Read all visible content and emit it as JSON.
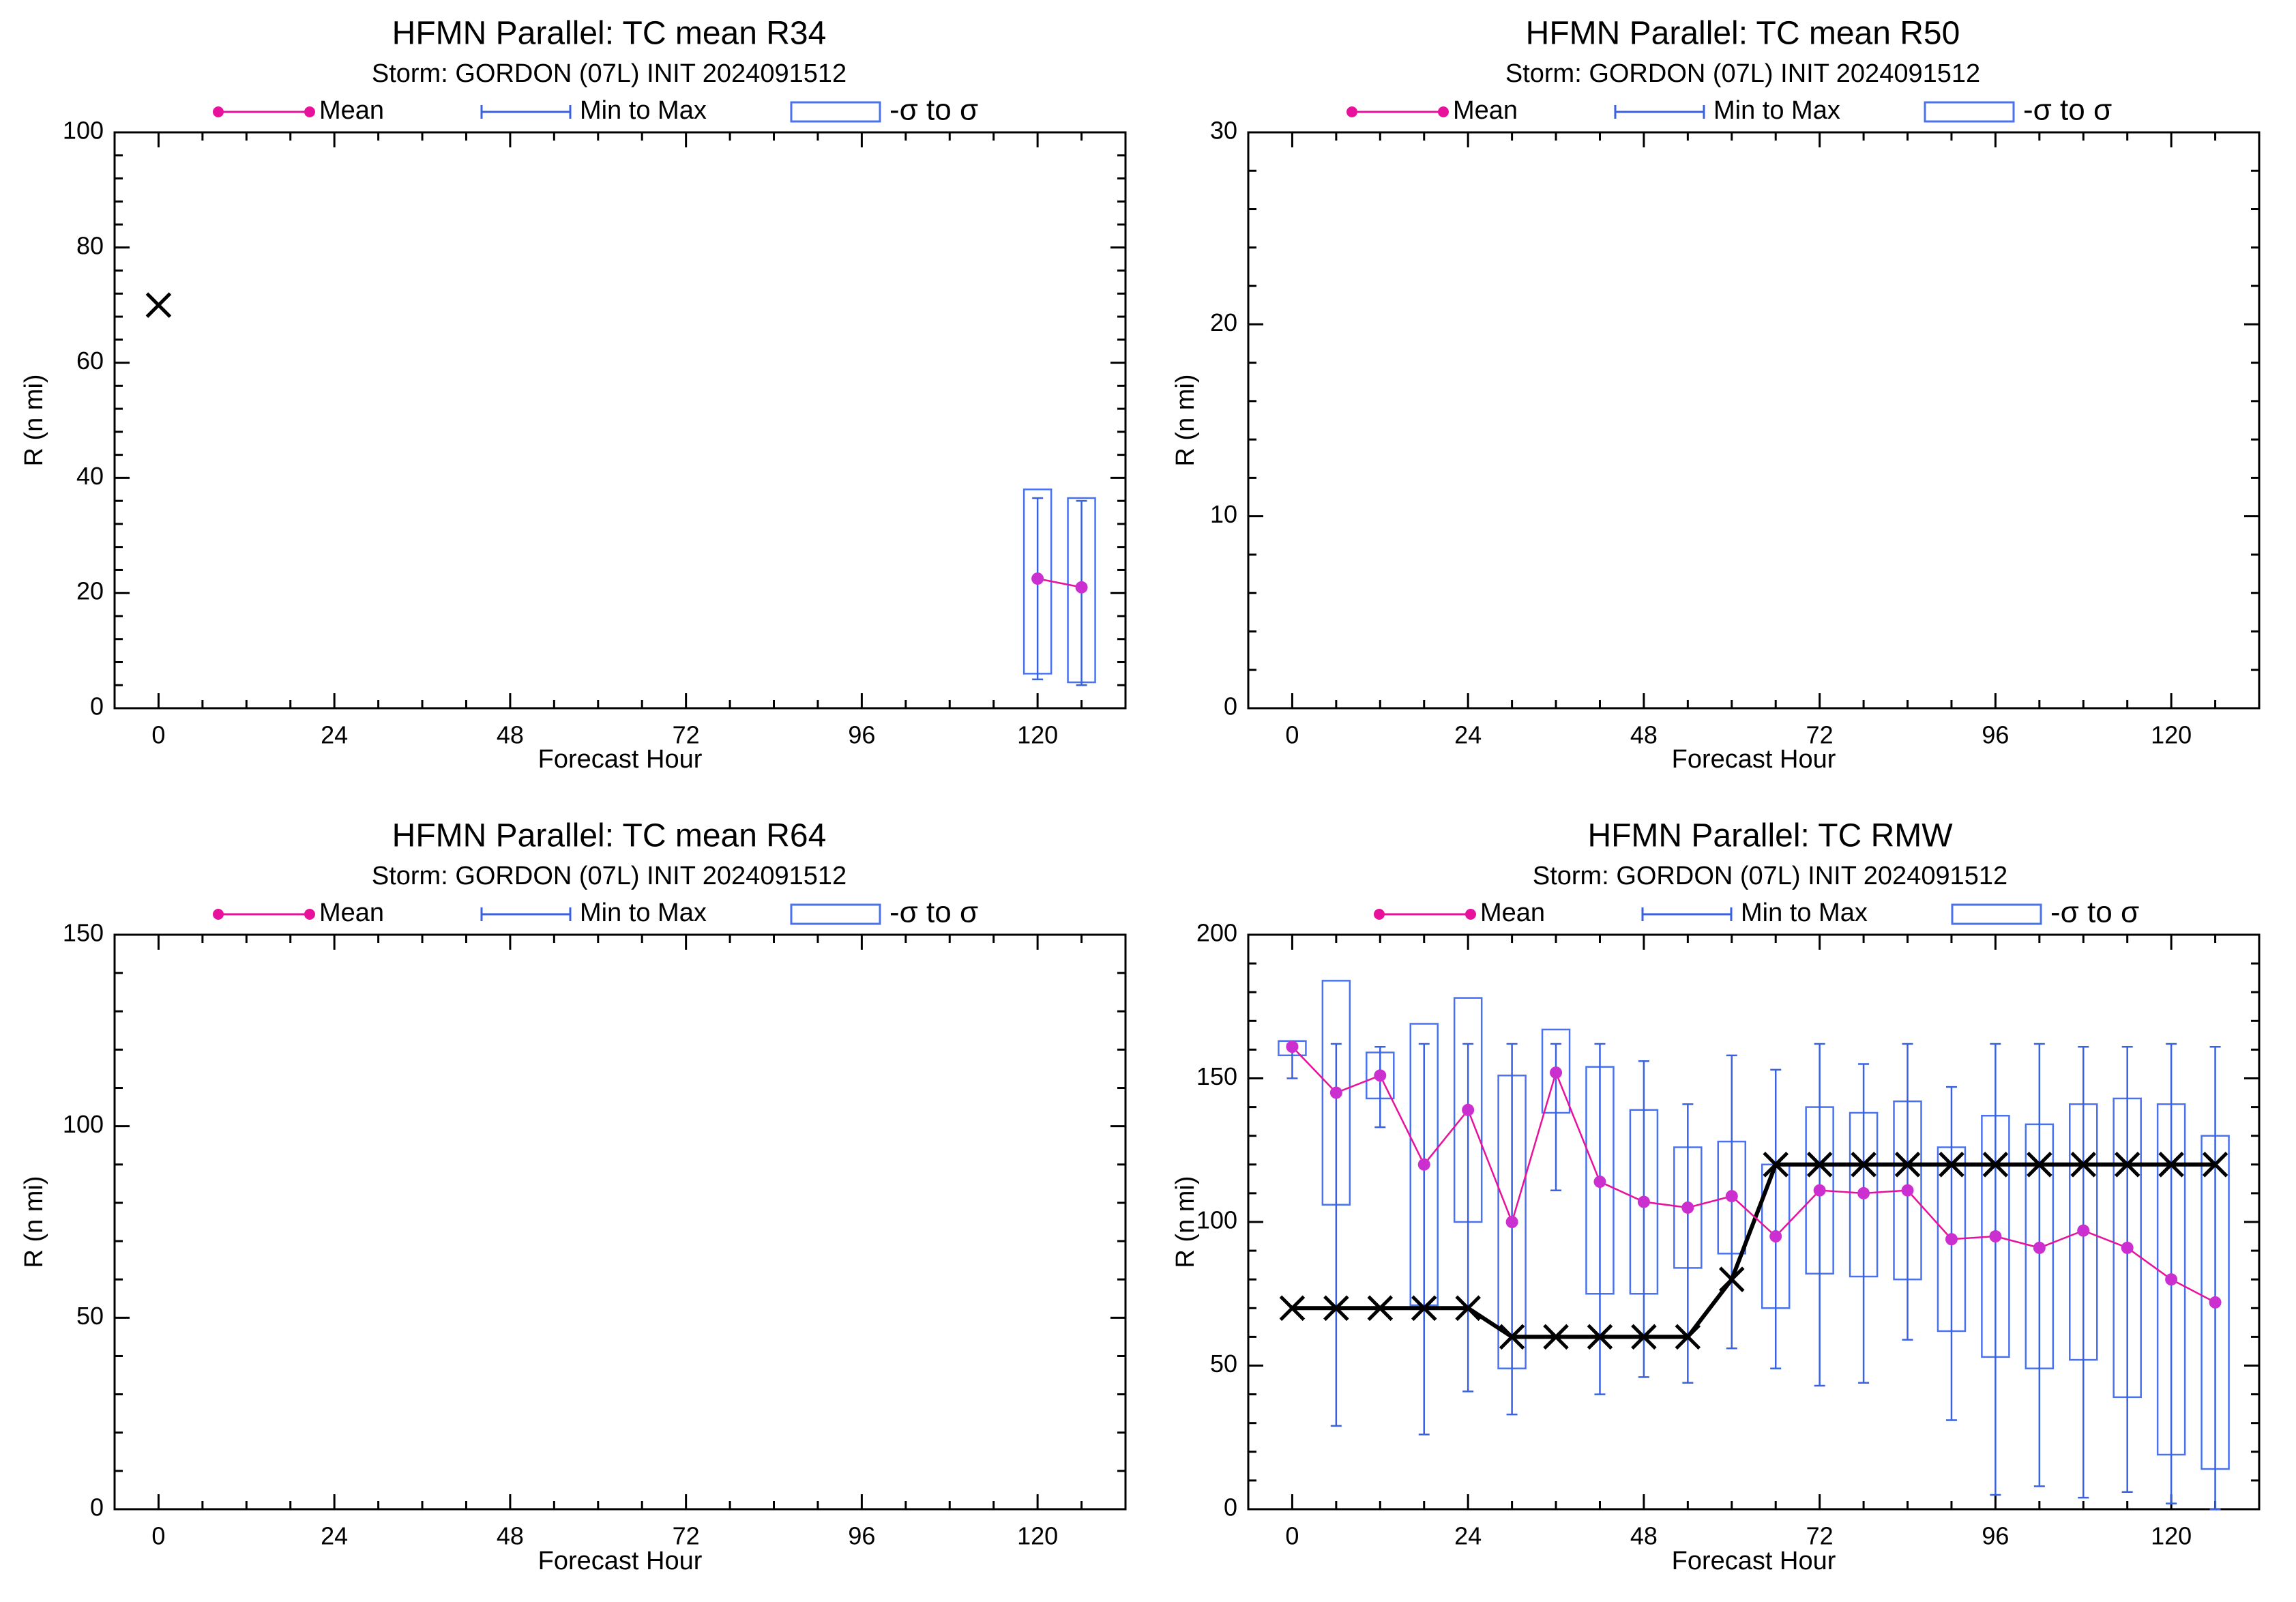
{
  "colors": {
    "mean": "#e8119c",
    "mean_marker": "#cc2fd0",
    "minmax": "#3a62e0",
    "sigma": "#4a72ee",
    "obs": "#000000",
    "axes": "#000000"
  },
  "legend": {
    "mean": "Mean",
    "minmax": "Min to Max",
    "sigma": "-σ to σ"
  },
  "chart_data": [
    {
      "type": "box",
      "title": "HFMN Parallel: TC mean R34",
      "subtitle": "Storm: GORDON (07L) INIT 2024091512",
      "xlabel": "Forecast Hour",
      "ylabel": "R (n mi)",
      "xlim": [
        -6,
        132
      ],
      "ylim": [
        0,
        100
      ],
      "xticks": [
        0,
        24,
        48,
        72,
        96,
        120
      ],
      "yticks": [
        0,
        20,
        40,
        60,
        80,
        100
      ],
      "yticks_labels": [
        "0",
        "20",
        "40",
        "60",
        "80",
        "100"
      ],
      "mean": [
        {
          "x": 120,
          "y": 22.5
        },
        {
          "x": 126,
          "y": 21
        }
      ],
      "minmax": [
        {
          "x": 120,
          "min": 5,
          "max": 36.5
        },
        {
          "x": 126,
          "min": 4,
          "max": 36
        }
      ],
      "sigma": [
        {
          "x": 120,
          "lo": 6,
          "hi": 38
        },
        {
          "x": 126,
          "lo": 4.5,
          "hi": 36.5
        }
      ],
      "observed": [
        {
          "x": 0,
          "y": 70
        }
      ]
    },
    {
      "type": "box",
      "title": "HFMN Parallel: TC mean R50",
      "subtitle": "Storm: GORDON (07L) INIT 2024091512",
      "xlabel": "Forecast Hour",
      "ylabel": "R (n mi)",
      "xlim": [
        -6,
        132
      ],
      "ylim": [
        0,
        30
      ],
      "xticks": [
        0,
        24,
        48,
        72,
        96,
        120
      ],
      "yticks": [
        0,
        10,
        20,
        30
      ],
      "yticks_labels": [
        "0",
        "10",
        "20",
        "30"
      ],
      "mean": [],
      "minmax": [],
      "sigma": [],
      "observed": []
    },
    {
      "type": "box",
      "title": "HFMN Parallel: TC mean R64",
      "subtitle": "Storm: GORDON (07L) INIT 2024091512",
      "xlabel": "Forecast Hour",
      "ylabel": "R (n mi)",
      "xlim": [
        -6,
        132
      ],
      "ylim": [
        0,
        150
      ],
      "xticks": [
        0,
        24,
        48,
        72,
        96,
        120
      ],
      "yticks": [
        0,
        50,
        100,
        150
      ],
      "yticks_labels": [
        "0",
        "50",
        "100",
        "150"
      ],
      "mean": [],
      "minmax": [],
      "sigma": [],
      "observed": []
    },
    {
      "type": "box",
      "title": "HFMN Parallel: TC RMW",
      "subtitle": "Storm: GORDON (07L) INIT 2024091512",
      "xlabel": "Forecast Hour",
      "ylabel": "R (n mi)",
      "xlim": [
        -6,
        132
      ],
      "ylim": [
        0,
        200
      ],
      "xticks": [
        0,
        24,
        48,
        72,
        96,
        120
      ],
      "yticks": [
        0,
        50,
        100,
        150,
        200
      ],
      "yticks_labels": [
        "0",
        "50",
        "100",
        "150",
        "200"
      ],
      "mean": [
        {
          "x": 0,
          "y": 161
        },
        {
          "x": 6,
          "y": 145
        },
        {
          "x": 12,
          "y": 151
        },
        {
          "x": 18,
          "y": 120
        },
        {
          "x": 24,
          "y": 139
        },
        {
          "x": 30,
          "y": 100
        },
        {
          "x": 36,
          "y": 152
        },
        {
          "x": 42,
          "y": 114
        },
        {
          "x": 48,
          "y": 107
        },
        {
          "x": 54,
          "y": 105
        },
        {
          "x": 60,
          "y": 109
        },
        {
          "x": 66,
          "y": 95
        },
        {
          "x": 72,
          "y": 111
        },
        {
          "x": 78,
          "y": 110
        },
        {
          "x": 84,
          "y": 111
        },
        {
          "x": 90,
          "y": 94
        },
        {
          "x": 96,
          "y": 95
        },
        {
          "x": 102,
          "y": 91
        },
        {
          "x": 108,
          "y": 97
        },
        {
          "x": 114,
          "y": 91
        },
        {
          "x": 120,
          "y": 80
        },
        {
          "x": 126,
          "y": 72
        }
      ],
      "minmax": [
        {
          "x": 0,
          "min": 150,
          "max": 162
        },
        {
          "x": 6,
          "min": 29,
          "max": 162
        },
        {
          "x": 12,
          "min": 133,
          "max": 161
        },
        {
          "x": 18,
          "min": 26,
          "max": 162
        },
        {
          "x": 24,
          "min": 41,
          "max": 162
        },
        {
          "x": 30,
          "min": 33,
          "max": 162
        },
        {
          "x": 36,
          "min": 111,
          "max": 162
        },
        {
          "x": 42,
          "min": 40,
          "max": 162
        },
        {
          "x": 48,
          "min": 46,
          "max": 156
        },
        {
          "x": 54,
          "min": 44,
          "max": 141
        },
        {
          "x": 60,
          "min": 56,
          "max": 158
        },
        {
          "x": 66,
          "min": 49,
          "max": 153
        },
        {
          "x": 72,
          "min": 43,
          "max": 162
        },
        {
          "x": 78,
          "min": 44,
          "max": 155
        },
        {
          "x": 84,
          "min": 59,
          "max": 162
        },
        {
          "x": 90,
          "min": 31,
          "max": 147
        },
        {
          "x": 96,
          "min": 5,
          "max": 162
        },
        {
          "x": 102,
          "min": 8,
          "max": 162
        },
        {
          "x": 108,
          "min": 4,
          "max": 161
        },
        {
          "x": 114,
          "min": 6,
          "max": 161
        },
        {
          "x": 120,
          "min": 2,
          "max": 162
        },
        {
          "x": 126,
          "min": 0,
          "max": 161
        }
      ],
      "sigma": [
        {
          "x": 0,
          "lo": 158,
          "hi": 163
        },
        {
          "x": 6,
          "lo": 106,
          "hi": 184
        },
        {
          "x": 12,
          "lo": 143,
          "hi": 159
        },
        {
          "x": 18,
          "lo": 71,
          "hi": 169
        },
        {
          "x": 24,
          "lo": 100,
          "hi": 178
        },
        {
          "x": 30,
          "lo": 49,
          "hi": 151
        },
        {
          "x": 36,
          "lo": 138,
          "hi": 167
        },
        {
          "x": 42,
          "lo": 75,
          "hi": 154
        },
        {
          "x": 48,
          "lo": 75,
          "hi": 139
        },
        {
          "x": 54,
          "lo": 84,
          "hi": 126
        },
        {
          "x": 60,
          "lo": 89,
          "hi": 128
        },
        {
          "x": 66,
          "lo": 70,
          "hi": 120
        },
        {
          "x": 72,
          "lo": 82,
          "hi": 140
        },
        {
          "x": 78,
          "lo": 81,
          "hi": 138
        },
        {
          "x": 84,
          "lo": 80,
          "hi": 142
        },
        {
          "x": 90,
          "lo": 62,
          "hi": 126
        },
        {
          "x": 96,
          "lo": 53,
          "hi": 137
        },
        {
          "x": 102,
          "lo": 49,
          "hi": 134
        },
        {
          "x": 108,
          "lo": 52,
          "hi": 141
        },
        {
          "x": 114,
          "lo": 39,
          "hi": 143
        },
        {
          "x": 120,
          "lo": 19,
          "hi": 141
        },
        {
          "x": 126,
          "lo": 14,
          "hi": 130
        }
      ],
      "observed": [
        {
          "x": 0,
          "y": 70
        },
        {
          "x": 6,
          "y": 70
        },
        {
          "x": 12,
          "y": 70
        },
        {
          "x": 18,
          "y": 70
        },
        {
          "x": 24,
          "y": 70
        },
        {
          "x": 30,
          "y": 60
        },
        {
          "x": 36,
          "y": 60
        },
        {
          "x": 42,
          "y": 60
        },
        {
          "x": 48,
          "y": 60
        },
        {
          "x": 54,
          "y": 60
        },
        {
          "x": 60,
          "y": 80
        },
        {
          "x": 66,
          "y": 120
        },
        {
          "x": 72,
          "y": 120
        },
        {
          "x": 78,
          "y": 120
        },
        {
          "x": 84,
          "y": 120
        },
        {
          "x": 90,
          "y": 120
        },
        {
          "x": 96,
          "y": 120
        },
        {
          "x": 102,
          "y": 120
        },
        {
          "x": 108,
          "y": 120
        },
        {
          "x": 114,
          "y": 120
        },
        {
          "x": 120,
          "y": 120
        },
        {
          "x": 126,
          "y": 120
        }
      ]
    }
  ]
}
